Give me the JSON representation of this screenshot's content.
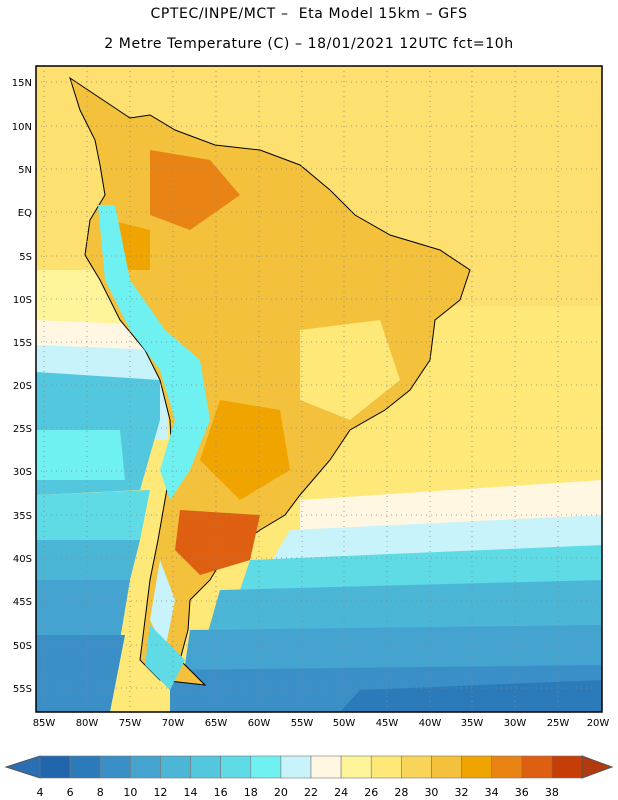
{
  "header": {
    "line1": "CPTEC/INPE/MCT –  Eta Model 15km – GFS",
    "line2": "2 Metre Temperature (C) – 18/01/2021 12UTC fct=10h"
  },
  "map": {
    "lat_labels": [
      "15N",
      "10N",
      "5N",
      "EQ",
      "5S",
      "10S",
      "15S",
      "20S",
      "25S",
      "30S",
      "35S",
      "40S",
      "45S",
      "50S",
      "55S"
    ],
    "lon_labels": [
      "85W",
      "80W",
      "75W",
      "70W",
      "65W",
      "60W",
      "55W",
      "50W",
      "45W",
      "40W",
      "35W",
      "30W",
      "25W",
      "20W"
    ],
    "grid": "dotted"
  },
  "colorbar": {
    "labels": [
      "4",
      "6",
      "8",
      "10",
      "12",
      "14",
      "16",
      "18",
      "20",
      "22",
      "24",
      "26",
      "28",
      "30",
      "32",
      "34",
      "36",
      "38"
    ],
    "colors": [
      "#2166ac",
      "#2b7bba",
      "#3a8fc7",
      "#45a3cf",
      "#4cb6d6",
      "#52c7dd",
      "#5fdbe6",
      "#6ff1f1",
      "#c9f3fb",
      "#fff7e2",
      "#fff49a",
      "#fde878",
      "#f8d558",
      "#f3c13b",
      "#f0a400",
      "#e98414",
      "#dd5f0f",
      "#c43e06"
    ],
    "under_color": "#2a6eb3",
    "over_color": "#b33a0c"
  }
}
